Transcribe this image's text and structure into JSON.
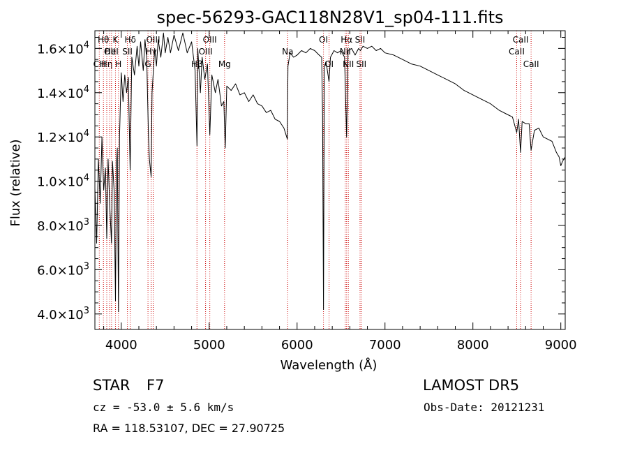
{
  "chart_data": {
    "type": "line",
    "title": "spec-56293-GAC118N28V1_sp04-111.fits",
    "xlabel": "Wavelength (Å)",
    "ylabel": "Flux (relative)",
    "xlim": [
      3700,
      9050
    ],
    "ylim": [
      3300,
      16800
    ],
    "x_ticks": [
      4000,
      5000,
      6000,
      7000,
      8000,
      9000
    ],
    "y_ticks": [
      {
        "value": 4000,
        "mant": "4.0",
        "exp": "3"
      },
      {
        "value": 6000,
        "mant": "6.0",
        "exp": "3"
      },
      {
        "value": 8000,
        "mant": "8.0",
        "exp": "3"
      },
      {
        "value": 10000,
        "mant": "1.0",
        "exp": "4"
      },
      {
        "value": 12000,
        "mant": "1.2",
        "exp": "4"
      },
      {
        "value": 14000,
        "mant": "1.4",
        "exp": "4"
      },
      {
        "value": 16000,
        "mant": "1.6",
        "exp": "4"
      }
    ],
    "grid": false,
    "series": [
      {
        "color": "#000000",
        "points": [
          [
            3700,
            9700
          ],
          [
            3720,
            7200
          ],
          [
            3740,
            11000
          ],
          [
            3760,
            9000
          ],
          [
            3780,
            12000
          ],
          [
            3800,
            9600
          ],
          [
            3820,
            10600
          ],
          [
            3835,
            7400
          ],
          [
            3850,
            11000
          ],
          [
            3870,
            8800
          ],
          [
            3889,
            7200
          ],
          [
            3900,
            10900
          ],
          [
            3920,
            9500
          ],
          [
            3934,
            4600
          ],
          [
            3945,
            10700
          ],
          [
            3955,
            11500
          ],
          [
            3968,
            4100
          ],
          [
            3980,
            12000
          ],
          [
            3990,
            13500
          ],
          [
            4000,
            14900
          ],
          [
            4020,
            13600
          ],
          [
            4040,
            14800
          ],
          [
            4060,
            14000
          ],
          [
            4080,
            14700
          ],
          [
            4101,
            10500
          ],
          [
            4120,
            15600
          ],
          [
            4150,
            14800
          ],
          [
            4180,
            16100
          ],
          [
            4200,
            15200
          ],
          [
            4220,
            16300
          ],
          [
            4250,
            15000
          ],
          [
            4270,
            16400
          ],
          [
            4290,
            15500
          ],
          [
            4310,
            12000
          ],
          [
            4320,
            11000
          ],
          [
            4340,
            10200
          ],
          [
            4350,
            14000
          ],
          [
            4380,
            16000
          ],
          [
            4400,
            15200
          ],
          [
            4420,
            16400
          ],
          [
            4450,
            15600
          ],
          [
            4480,
            16700
          ],
          [
            4500,
            15800
          ],
          [
            4530,
            16500
          ],
          [
            4560,
            15800
          ],
          [
            4600,
            16600
          ],
          [
            4650,
            15900
          ],
          [
            4700,
            16700
          ],
          [
            4750,
            15800
          ],
          [
            4800,
            16300
          ],
          [
            4840,
            15000
          ],
          [
            4861,
            11600
          ],
          [
            4870,
            16000
          ],
          [
            4900,
            14000
          ],
          [
            4920,
            15600
          ],
          [
            4950,
            14600
          ],
          [
            4980,
            15300
          ],
          [
            5007,
            12100
          ],
          [
            5030,
            14800
          ],
          [
            5070,
            14000
          ],
          [
            5100,
            14600
          ],
          [
            5140,
            13400
          ],
          [
            5167,
            13600
          ],
          [
            5183,
            11500
          ],
          [
            5200,
            14300
          ],
          [
            5250,
            14100
          ],
          [
            5300,
            14400
          ],
          [
            5350,
            13900
          ],
          [
            5400,
            14000
          ],
          [
            5450,
            13600
          ],
          [
            5500,
            13900
          ],
          [
            5550,
            13500
          ],
          [
            5600,
            13400
          ],
          [
            5650,
            13100
          ],
          [
            5700,
            13200
          ],
          [
            5750,
            12800
          ],
          [
            5800,
            12700
          ],
          [
            5850,
            12400
          ],
          [
            5889,
            11900
          ],
          [
            5896,
            15200
          ],
          [
            5920,
            15800
          ],
          [
            5960,
            15600
          ],
          [
            6000,
            15700
          ],
          [
            6050,
            15900
          ],
          [
            6100,
            15800
          ],
          [
            6150,
            16000
          ],
          [
            6200,
            15900
          ],
          [
            6250,
            15700
          ],
          [
            6280,
            15600
          ],
          [
            6290,
            13000
          ],
          [
            6300,
            4200
          ],
          [
            6310,
            15200
          ],
          [
            6330,
            15400
          ],
          [
            6363,
            14500
          ],
          [
            6380,
            15600
          ],
          [
            6420,
            15900
          ],
          [
            6460,
            15800
          ],
          [
            6500,
            15900
          ],
          [
            6540,
            15600
          ],
          [
            6563,
            12000
          ],
          [
            6580,
            15900
          ],
          [
            6620,
            16000
          ],
          [
            6660,
            15700
          ],
          [
            6700,
            16000
          ],
          [
            6720,
            15900
          ],
          [
            6750,
            16100
          ],
          [
            6800,
            16000
          ],
          [
            6850,
            16100
          ],
          [
            6900,
            15900
          ],
          [
            6950,
            16000
          ],
          [
            7000,
            15800
          ],
          [
            7100,
            15700
          ],
          [
            7200,
            15500
          ],
          [
            7300,
            15300
          ],
          [
            7400,
            15200
          ],
          [
            7500,
            15000
          ],
          [
            7600,
            14800
          ],
          [
            7700,
            14600
          ],
          [
            7800,
            14400
          ],
          [
            7900,
            14100
          ],
          [
            8000,
            13900
          ],
          [
            8100,
            13700
          ],
          [
            8200,
            13500
          ],
          [
            8300,
            13200
          ],
          [
            8400,
            13000
          ],
          [
            8450,
            12900
          ],
          [
            8498,
            12200
          ],
          [
            8520,
            12800
          ],
          [
            8542,
            11300
          ],
          [
            8560,
            12700
          ],
          [
            8600,
            12600
          ],
          [
            8640,
            12600
          ],
          [
            8662,
            11400
          ],
          [
            8700,
            12300
          ],
          [
            8750,
            12400
          ],
          [
            8800,
            12000
          ],
          [
            8850,
            11900
          ],
          [
            8900,
            11800
          ],
          [
            8950,
            11300
          ],
          [
            8980,
            11100
          ],
          [
            9000,
            10700
          ],
          [
            9020,
            10900
          ],
          [
            9050,
            11100
          ]
        ]
      }
    ],
    "lines": [
      {
        "x": 3750,
        "label": "CH",
        "row": 2
      },
      {
        "x": 3797,
        "label": "Hθ",
        "row": 0
      },
      {
        "x": 3835,
        "label": "Hη",
        "row": 2
      },
      {
        "x": 3869,
        "label": "OII",
        "row": 1
      },
      {
        "x": 3889,
        "label": "HeI",
        "row": 1
      },
      {
        "x": 3934,
        "label": "K",
        "row": 0
      },
      {
        "x": 3968,
        "label": "H",
        "row": 2
      },
      {
        "x": 4070,
        "label": "SII",
        "row": 1
      },
      {
        "x": 4102,
        "label": "Hδ",
        "row": 0
      },
      {
        "x": 4304,
        "label": "G",
        "row": 2
      },
      {
        "x": 4340,
        "label": "Hγ",
        "row": 1
      },
      {
        "x": 4363,
        "label": "OIII",
        "row": 0
      },
      {
        "x": 4861,
        "label": "Hβ",
        "row": 2
      },
      {
        "x": 4959,
        "label": "OIII",
        "row": 1
      },
      {
        "x": 5007,
        "label": "OIII",
        "row": 0
      },
      {
        "x": 5175,
        "label": "Mg",
        "row": 2
      },
      {
        "x": 5893,
        "label": "Na",
        "row": 1
      },
      {
        "x": 6300,
        "label": "OI",
        "row": 0
      },
      {
        "x": 6364,
        "label": "OI",
        "row": 2
      },
      {
        "x": 6548,
        "label": "NII",
        "row": 1
      },
      {
        "x": 6563,
        "label": "Hα",
        "row": 0
      },
      {
        "x": 6583,
        "label": "NII",
        "row": 2
      },
      {
        "x": 6716,
        "label": "SII",
        "row": 0
      },
      {
        "x": 6731,
        "label": "SII",
        "row": 2
      },
      {
        "x": 8498,
        "label": "CaII",
        "row": 1
      },
      {
        "x": 8542,
        "label": "CaII",
        "row": 0
      },
      {
        "x": 8662,
        "label": "CaII",
        "row": 2
      }
    ],
    "line_color": "#cc0000"
  },
  "info": {
    "class": "STAR",
    "subclass": "F7",
    "survey": "LAMOST DR5",
    "cz": "cz = -53.0 ± 5.6 km/s",
    "obsdate": "Obs-Date: 20121231",
    "radec": "RA = 118.53107, DEC =  27.90725"
  }
}
